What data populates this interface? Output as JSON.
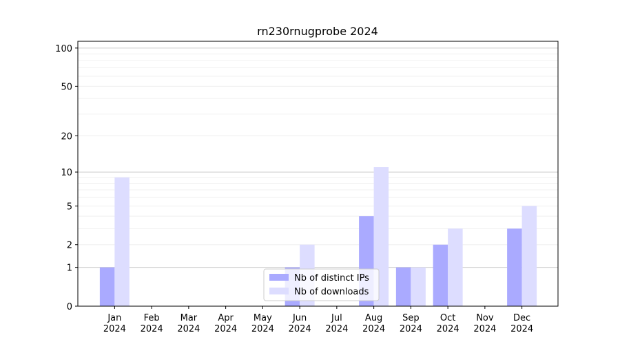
{
  "chart_data": {
    "type": "bar",
    "title": "rn230rnugprobe 2024",
    "categories": [
      "Jan 2024",
      "Feb 2024",
      "Mar 2024",
      "Apr 2024",
      "May 2024",
      "Jun 2024",
      "Jul 2024",
      "Aug 2024",
      "Sep 2024",
      "Oct 2024",
      "Nov 2024",
      "Dec 2024"
    ],
    "series": [
      {
        "name": "Nb of distinct IPs",
        "color": "#aaaaff",
        "values": [
          1,
          0,
          0,
          0,
          0,
          1,
          0,
          4,
          1,
          2,
          0,
          3
        ]
      },
      {
        "name": "Nb of downloads",
        "color": "#ddddff",
        "values": [
          9,
          0,
          0,
          0,
          0,
          2,
          0,
          11,
          1,
          3,
          0,
          5
        ]
      }
    ],
    "yscale": "symlog",
    "ylim": [
      0,
      113
    ],
    "yticks": [
      0,
      1,
      2,
      5,
      10,
      20,
      50,
      100
    ],
    "minor_yticks": [
      3,
      4,
      6,
      7,
      8,
      9,
      30,
      40,
      60,
      70,
      80,
      90
    ],
    "grid": true,
    "legend": "lower center"
  }
}
